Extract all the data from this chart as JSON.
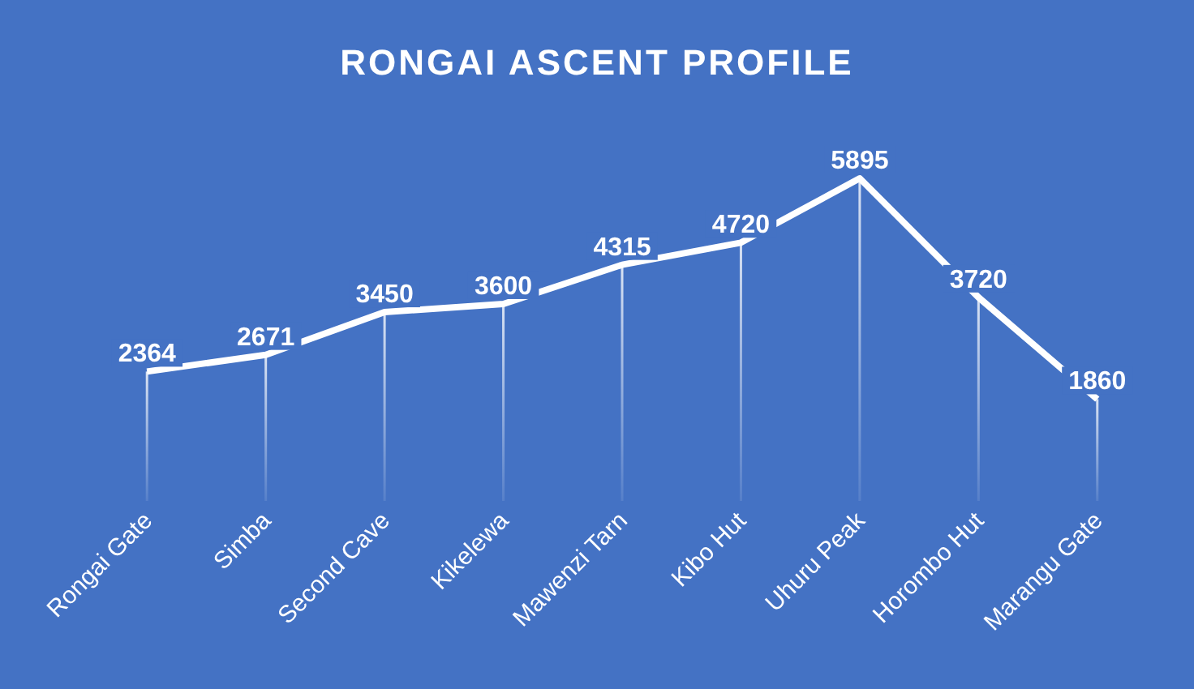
{
  "chart_data": {
    "type": "line",
    "title": "RONGAI ASCENT PROFILE",
    "categories": [
      "Rongai Gate",
      "Simba",
      "Second Cave",
      "Kikelewa",
      "Mawenzi Tarn",
      "Kibo Hut",
      "Uhuru Peak",
      "Horombo Hut",
      "Marangu Gate"
    ],
    "series": [
      {
        "type": "bar",
        "color": "#ffffff",
        "values": [
          2364,
          2671,
          3450,
          3600,
          4315,
          4720,
          5895,
          3720,
          1860
        ],
        "value_labels": [
          null,
          null,
          null,
          null,
          null,
          null,
          null,
          null,
          null
        ]
      },
      {
        "color": "#ffffff",
        "values": [
          2364,
          2671,
          3450,
          3600,
          4315,
          4720,
          5895,
          3720,
          1860
        ]
      }
    ],
    "data_labels": true,
    "tick_labels": "x",
    "grid": false,
    "line_style": "solid"
  }
}
